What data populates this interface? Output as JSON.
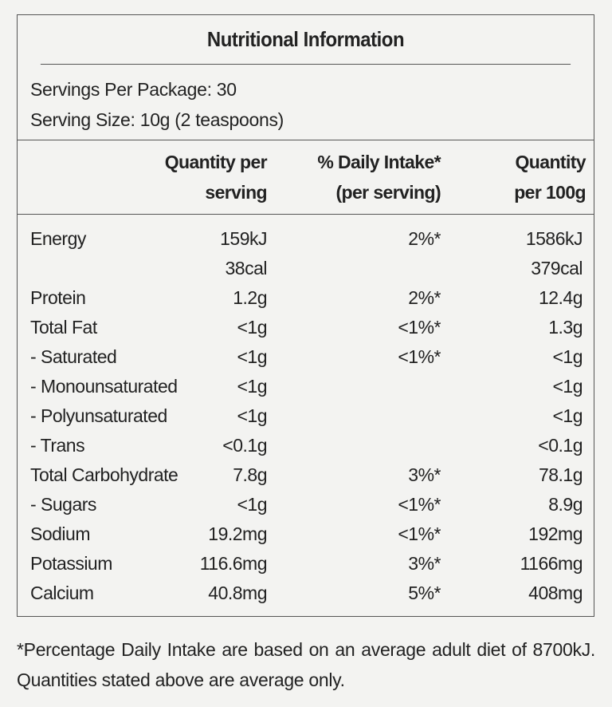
{
  "title": "Nutritional Information",
  "servings_per_package": "Servings Per Package: 30",
  "serving_size": "Serving Size: 10g (2 teaspoons)",
  "headers": {
    "qps_line1": "Quantity  per",
    "qps_line2": "serving",
    "pdi_line1": "% Daily Intake*",
    "pdi_line2": "(per serving)",
    "q100_line1": "Quantity",
    "q100_line2": "per 100g"
  },
  "rows": [
    {
      "name": "Energy",
      "qps": "159kJ",
      "pdi": "2%*",
      "q100": "1586kJ"
    },
    {
      "name": "",
      "qps": "38cal",
      "pdi": "",
      "q100": "379cal"
    },
    {
      "name": "Protein",
      "qps": "1.2g",
      "pdi": "2%*",
      "q100": "12.4g"
    },
    {
      "name": "Total Fat",
      "qps": "<1g",
      "pdi": "<1%*",
      "q100": "1.3g"
    },
    {
      "name": "- Saturated",
      "qps": "<1g",
      "pdi": "<1%*",
      "q100": "<1g"
    },
    {
      "name": "- Monounsaturated",
      "qps": "<1g",
      "pdi": "",
      "q100": "<1g"
    },
    {
      "name": "- Polyunsaturated",
      "qps": "<1g",
      "pdi": "",
      "q100": "<1g"
    },
    {
      "name": "- Trans",
      "qps": "<0.1g",
      "pdi": "",
      "q100": "<0.1g"
    },
    {
      "name": "Total Carbohydrate",
      "qps": "7.8g",
      "pdi": "3%*",
      "q100": "78.1g"
    },
    {
      "name": "- Sugars",
      "qps": "<1g",
      "pdi": "<1%*",
      "q100": "8.9g"
    },
    {
      "name": "Sodium",
      "qps": "19.2mg",
      "pdi": "<1%*",
      "q100": "192mg"
    },
    {
      "name": "Potassium",
      "qps": "116.6mg",
      "pdi": "3%*",
      "q100": "1166mg"
    },
    {
      "name": "Calcium",
      "qps": "40.8mg",
      "pdi": "5%*",
      "q100": "408mg"
    }
  ],
  "footnote": "*Percentage Daily Intake are based on an average adult diet of 8700kJ. Quantities stated above are average only."
}
